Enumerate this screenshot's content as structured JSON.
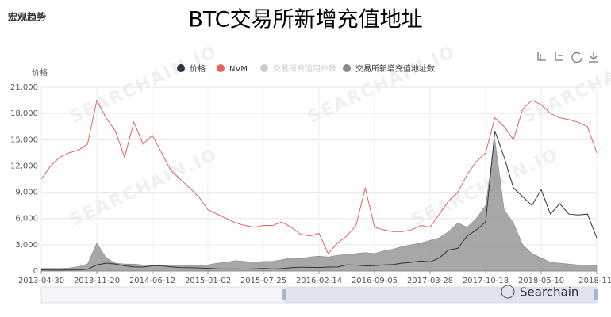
{
  "header": "宏观趋势",
  "watermark": "SEARCHAIN.IO",
  "logo": "Searchain",
  "chart_data": {
    "type": "line",
    "title": "BTC交易所新增充值地址",
    "y_label": "价格",
    "categories": [
      "2013-04-30",
      null,
      null,
      null,
      null,
      null,
      "2013-11-20",
      null,
      null,
      null,
      null,
      null,
      "2014-06-12",
      null,
      null,
      null,
      null,
      null,
      "2015-01-02",
      null,
      null,
      null,
      null,
      null,
      "2015-07-25",
      null,
      null,
      null,
      null,
      null,
      "2016-02-14",
      null,
      null,
      null,
      null,
      null,
      "2016-09-05",
      null,
      null,
      null,
      null,
      null,
      "2017-03-28",
      null,
      null,
      null,
      null,
      null,
      "2017-10-18",
      null,
      null,
      null,
      null,
      null,
      "2018-05-10",
      null,
      null,
      null,
      null,
      null,
      "2018-11-"
    ],
    "ylim": [
      0,
      21000
    ],
    "yticks": [
      0,
      {
        "value": 3000,
        "label": "3,000"
      },
      {
        "value": 6000,
        "label": "6,000"
      },
      {
        "value": 9000,
        "label": "9,000"
      },
      {
        "value": 12000,
        "label": "12,000"
      },
      {
        "value": 15000,
        "label": "15,000"
      },
      {
        "value": 18000,
        "label": "18,000"
      },
      {
        "value": 21000,
        "label": "21,000"
      }
    ],
    "grid": true,
    "legend": "top",
    "series": [
      {
        "name": "价格",
        "color": "#2f3542",
        "kind": "line",
        "values": [
          130,
          110,
          100,
          120,
          140,
          200,
          700,
          900,
          800,
          600,
          480,
          450,
          600,
          600,
          480,
          400,
          380,
          350,
          310,
          250,
          240,
          240,
          230,
          250,
          290,
          240,
          280,
          380,
          430,
          420,
          400,
          450,
          460,
          700,
          680,
          590,
          610,
          700,
          750,
          900,
          1000,
          1150,
          1050,
          1500,
          2400,
          2600,
          4000,
          4700,
          5600,
          16000,
          13000,
          9500,
          8500,
          7500,
          9300,
          6500,
          7700,
          6500,
          6400,
          6500,
          3800
        ]
      },
      {
        "name": "NVM",
        "color": "#e8615a",
        "kind": "line",
        "values": [
          10500,
          12000,
          13000,
          13500,
          13800,
          14500,
          19500,
          17500,
          16000,
          13000,
          17000,
          14500,
          15500,
          13500,
          11500,
          10500,
          9500,
          8500,
          7000,
          6500,
          6000,
          5500,
          5200,
          5000,
          5200,
          5200,
          5600,
          5000,
          4200,
          4000,
          4300,
          2000,
          3200,
          4000,
          5200,
          9500,
          5000,
          4700,
          4500,
          4500,
          4700,
          5200,
          5000,
          6500,
          8000,
          9000,
          11000,
          12500,
          13500,
          17500,
          16500,
          15000,
          18500,
          19500,
          19000,
          18000,
          17500,
          17300,
          17000,
          16500,
          13500
        ]
      },
      {
        "name": "交易所充值用户数",
        "color": "#cccccc",
        "kind": "line",
        "visible": false,
        "values": [
          null,
          null,
          null,
          null,
          null,
          null,
          null,
          null,
          null,
          null,
          null,
          null,
          null,
          null,
          null,
          null,
          null,
          null,
          null,
          null,
          null,
          null,
          null,
          null,
          null,
          null,
          null,
          null,
          null,
          null,
          null,
          null,
          null,
          null,
          null,
          null,
          null,
          null,
          null,
          null,
          null,
          null,
          null,
          null,
          null,
          null,
          null,
          null,
          null,
          null,
          null,
          null,
          null,
          null,
          null,
          null,
          null,
          null,
          null,
          null,
          null
        ]
      },
      {
        "name": "交易所新增充值地址数",
        "color": "#8a8a8a",
        "kind": "area",
        "values": [
          300,
          300,
          300,
          350,
          500,
          800,
          3200,
          1500,
          900,
          800,
          800,
          700,
          700,
          700,
          650,
          650,
          600,
          600,
          700,
          900,
          1000,
          1200,
          1100,
          1000,
          1100,
          1100,
          1300,
          1500,
          1400,
          1600,
          1700,
          1600,
          1800,
          1900,
          2000,
          2100,
          2000,
          2300,
          2500,
          2800,
          3000,
          3200,
          3500,
          3800,
          4500,
          5500,
          5000,
          6000,
          7500,
          15000,
          7000,
          5500,
          3000,
          2000,
          1500,
          1000,
          900,
          800,
          700,
          700,
          600
        ]
      }
    ]
  }
}
